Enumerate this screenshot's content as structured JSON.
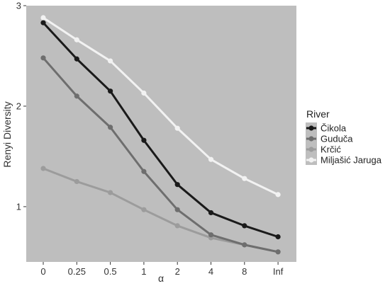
{
  "chart_data": {
    "type": "line",
    "xlabel": "α",
    "ylabel": "Renyi Diversity",
    "categories": [
      "0",
      "0.25",
      "0.5",
      "1",
      "2",
      "4",
      "8",
      "Inf"
    ],
    "yticks": [
      "1",
      "2",
      "3"
    ],
    "ylim": [
      0.45,
      3.0
    ],
    "grid": false,
    "panel_background": "#bebebe",
    "legend": {
      "title": "River",
      "position": "right"
    },
    "series": [
      {
        "name": "Čikola",
        "color": "#1a1a1a",
        "values": [
          2.83,
          2.47,
          2.15,
          1.66,
          1.22,
          0.94,
          0.81,
          0.7
        ]
      },
      {
        "name": "Guduča",
        "color": "#6e6e6e",
        "values": [
          2.48,
          2.1,
          1.79,
          1.35,
          0.97,
          0.72,
          0.62,
          0.55
        ]
      },
      {
        "name": "Krčić",
        "color": "#9c9c9c",
        "values": [
          1.38,
          1.25,
          1.14,
          0.97,
          0.81,
          0.69,
          0.62,
          0.55
        ]
      },
      {
        "name": "Miljašić Jaruga",
        "color": "#f2f2f2",
        "values": [
          2.88,
          2.66,
          2.45,
          2.13,
          1.78,
          1.47,
          1.28,
          1.12
        ]
      }
    ]
  }
}
